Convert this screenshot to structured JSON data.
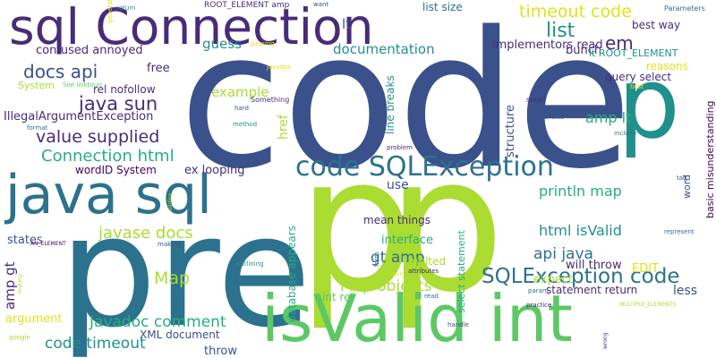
{
  "palette": {
    "background": "#ffffff",
    "c1": "#440154",
    "c2": "#472c7a",
    "c3": "#3b518b",
    "c4": "#2c718e",
    "c5": "#21908d",
    "c6": "#27ad81",
    "c7": "#5cc863",
    "c8": "#aadc32",
    "c9": "#dde318"
  },
  "words": [
    {
      "text": "code",
      "color": "c3"
    },
    {
      "text": "pre",
      "color": "c4"
    },
    {
      "text": "p",
      "color": "c8"
    },
    {
      "text": "p",
      "color": "c8"
    },
    {
      "text": "p",
      "color": "c5"
    },
    {
      "text": "sql Connection",
      "color": "c2"
    },
    {
      "text": "java sql",
      "color": "c4"
    },
    {
      "text": "isValid int",
      "color": "c7"
    },
    {
      "text": "code SQLException",
      "color": "c4"
    },
    {
      "text": "SQLException code",
      "color": "c4"
    },
    {
      "text": "timeout code",
      "color": "c9"
    },
    {
      "text": "list",
      "color": "c5"
    },
    {
      "text": "em",
      "color": "c2"
    },
    {
      "text": "docs api",
      "color": "c3"
    },
    {
      "text": "java sun",
      "color": "c2"
    },
    {
      "text": "value supplied",
      "color": "c2"
    },
    {
      "text": "Connection html",
      "color": "c6"
    },
    {
      "text": "javase docs",
      "color": "c8"
    },
    {
      "text": "Map",
      "color": "c8"
    },
    {
      "text": "Javadoc comment",
      "color": "c6"
    },
    {
      "text": "code timeout",
      "color": "c5"
    },
    {
      "text": "amp gt",
      "color": "c2"
    },
    {
      "text": "gt amp",
      "color": "c4"
    },
    {
      "text": "Map objects",
      "color": "c8"
    },
    {
      "text": "api java",
      "color": "c4"
    },
    {
      "text": "html isValid",
      "color": "c5"
    },
    {
      "text": "println map",
      "color": "c6"
    },
    {
      "text": "amp lt",
      "color": "c6"
    },
    {
      "text": "documentation",
      "color": "c5"
    },
    {
      "text": "implementors read",
      "color": "c2"
    },
    {
      "text": "guess",
      "color": "c5"
    },
    {
      "text": "example",
      "color": "c8"
    },
    {
      "text": "confused annoyed",
      "color": "c2"
    },
    {
      "text": "rel nofollow",
      "color": "c2"
    },
    {
      "text": "IllegalArgumentException",
      "color": "c2"
    },
    {
      "text": "free",
      "color": "c2"
    },
    {
      "text": "lt",
      "color": "c3"
    },
    {
      "text": "list size",
      "color": "c4"
    },
    {
      "text": "best way",
      "color": "c2"
    },
    {
      "text": "bunch",
      "color": "c2"
    },
    {
      "text": "lt ROOT_ELEMENT",
      "color": "c5"
    },
    {
      "text": "reasons",
      "color": "c9"
    },
    {
      "text": "query select",
      "color": "c2"
    },
    {
      "text": "basic misunderstanding",
      "color": "c1"
    },
    {
      "text": "structure",
      "color": "c3"
    },
    {
      "text": "line breaks",
      "color": "c5"
    },
    {
      "text": "href",
      "color": "c8"
    },
    {
      "text": "use",
      "color": "c3"
    },
    {
      "text": "wordID System",
      "color": "c1"
    },
    {
      "text": "ex looping",
      "color": "c2"
    },
    {
      "text": "mean things",
      "color": "c2"
    },
    {
      "text": "interface",
      "color": "c6"
    },
    {
      "text": "melted",
      "color": "c8"
    },
    {
      "text": "database appears",
      "color": "c6"
    },
    {
      "text": "int rel",
      "color": "c7"
    },
    {
      "text": "select statement",
      "color": "c6"
    },
    {
      "text": "expect",
      "color": "c8"
    },
    {
      "text": "will throw",
      "color": "c2"
    },
    {
      "text": "statement return",
      "color": "c2"
    },
    {
      "text": "EDIT",
      "color": "c9"
    },
    {
      "text": "less",
      "color": "c3"
    },
    {
      "text": "word",
      "color": "c3"
    },
    {
      "text": "states",
      "color": "c3"
    },
    {
      "text": "argument",
      "color": "c9"
    },
    {
      "text": "XML document",
      "color": "c3"
    },
    {
      "text": "throw",
      "color": "c3"
    },
    {
      "text": "System",
      "color": "c8"
    },
    {
      "text": "ROOT_ELEMENT amp",
      "color": "c2"
    },
    {
      "text": "See linktouri",
      "color": "c7"
    },
    {
      "text": "return",
      "color": "c5"
    },
    {
      "text": "want",
      "color": "c3"
    },
    {
      "text": "passing",
      "color": "c9"
    },
    {
      "text": "Javadoc",
      "color": "c9"
    },
    {
      "text": "Something",
      "color": "c2"
    },
    {
      "text": "hard",
      "color": "c3"
    },
    {
      "text": "method",
      "color": "c5"
    },
    {
      "text": "format",
      "color": "c4"
    },
    {
      "text": "general",
      "color": "c9"
    },
    {
      "text": "AN_ELEMENT",
      "color": "c1"
    },
    {
      "text": "adding",
      "color": "c8"
    },
    {
      "text": "making",
      "color": "c3"
    },
    {
      "text": "outlining",
      "color": "c5"
    },
    {
      "text": "google",
      "color": "c8"
    },
    {
      "text": "problem",
      "color": "c2"
    },
    {
      "text": "small",
      "color": "c2"
    },
    {
      "text": "shows",
      "color": "c3"
    },
    {
      "text": "include",
      "color": "c4"
    },
    {
      "text": "best",
      "color": "c9"
    },
    {
      "text": "Parameters",
      "color": "c4"
    },
    {
      "text": "tag",
      "color": "c3"
    },
    {
      "text": "represent",
      "color": "c4"
    },
    {
      "text": "form",
      "color": "c4"
    },
    {
      "text": "back",
      "color": "c9"
    },
    {
      "text": "attributes",
      "color": "c2"
    },
    {
      "text": "read",
      "color": "c4"
    },
    {
      "text": "param",
      "color": "c4"
    },
    {
      "text": "practice",
      "color": "c2"
    },
    {
      "text": "MULTIPLE_ELEMENTS",
      "color": "c8"
    },
    {
      "text": "handle",
      "color": "c3"
    },
    {
      "text": "wrong",
      "color": "c2"
    },
    {
      "text": "looking",
      "color": "c8"
    }
  ]
}
